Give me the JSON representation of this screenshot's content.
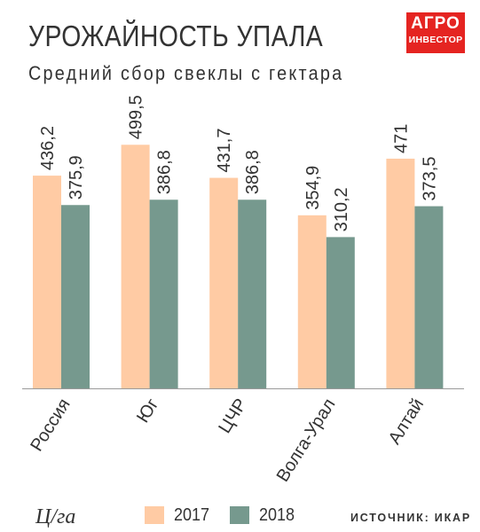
{
  "header": {
    "title": "УРОЖАЙНОСТЬ УПАЛА",
    "subtitle": "Средний сбор свеклы с гектара"
  },
  "logo": {
    "line1": "АГРО",
    "line2": "ИНВЕСТОР",
    "color": "#e52421"
  },
  "footer": {
    "unit": "Ц/га",
    "source": "ИСТОЧНИК: ИКАР"
  },
  "chart_data": {
    "type": "bar",
    "categories": [
      "Россия",
      "Юг",
      "ЦЧР",
      "Волга-Урал",
      "Алтай"
    ],
    "series": [
      {
        "name": "2017",
        "color": "#ffcba4",
        "values": [
          436.2,
          499.5,
          431.7,
          354.9,
          471
        ],
        "labels": [
          "436,2",
          "499,5",
          "431,7",
          "354,9",
          "471"
        ]
      },
      {
        "name": "2018",
        "color": "#76998e",
        "values": [
          375.9,
          386.8,
          386.8,
          310.2,
          373.5
        ],
        "labels": [
          "375,9",
          "386,8",
          "386,8",
          "310,2",
          "373,5"
        ]
      }
    ],
    "title": "УРОЖАЙНОСТЬ УПАЛА",
    "ylabel": "Ц/га",
    "ylim": [
      0,
      500
    ],
    "grid": false,
    "legend": "bottom"
  }
}
